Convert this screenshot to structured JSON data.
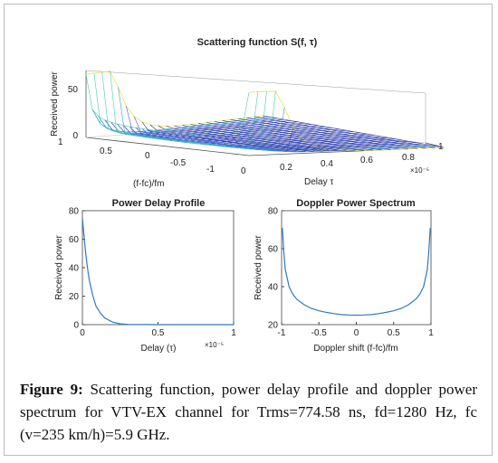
{
  "chart_data": [
    {
      "type": "surface",
      "title": "Scattering function S(f, τ)",
      "zlabel": "Received power",
      "xlabel": "(f-fc)/fm",
      "ylabel": "Delay τ",
      "y_exponent": "×10⁻⁵",
      "z_ticks": [
        "0",
        "50"
      ],
      "x_ticks": [
        "1",
        "0.5",
        "0",
        "-0.5",
        "-1"
      ],
      "y_ticks": [
        "0",
        "0.2",
        "0.4",
        "0.6",
        "0.8",
        "1"
      ],
      "colormap": [
        "#2b2a96",
        "#3f5cc8",
        "#36a2d6",
        "#49c9b0",
        "#e8e64a"
      ]
    },
    {
      "type": "line",
      "title": "Power Delay Profile",
      "xlabel": "Delay (τ)",
      "ylabel": "Received power",
      "x_exponent": "×10⁻⁵",
      "xlim": [
        0,
        1
      ],
      "ylim": [
        0,
        80
      ],
      "x_ticks": [
        "0",
        "0.5",
        "1"
      ],
      "y_ticks": [
        "0",
        "20",
        "40",
        "60",
        "80"
      ],
      "x": [
        0,
        0.01,
        0.02,
        0.03,
        0.04,
        0.05,
        0.07,
        0.09,
        0.12,
        0.15,
        0.2,
        0.25,
        0.3,
        0.4,
        0.5,
        0.6,
        0.7,
        0.8,
        0.9,
        1.0
      ],
      "values": [
        75,
        63,
        52,
        43,
        35,
        29,
        20,
        13,
        8,
        4.5,
        1.8,
        0.6,
        0.2,
        0.05,
        0,
        0,
        0,
        0,
        0,
        0
      ],
      "color": "#2e7bbf"
    },
    {
      "type": "line",
      "title": "Doppler Power Spectrum",
      "xlabel": "Doppler shift (f-fc)/fm",
      "ylabel": "Received power",
      "xlim": [
        -1,
        1
      ],
      "ylim": [
        20,
        80
      ],
      "x_ticks": [
        "-1",
        "-0.5",
        "0",
        "0.5",
        "1"
      ],
      "y_ticks": [
        "20",
        "40",
        "60",
        "80"
      ],
      "x": [
        -0.99,
        -0.97,
        -0.95,
        -0.9,
        -0.85,
        -0.8,
        -0.7,
        -0.6,
        -0.5,
        -0.4,
        -0.3,
        -0.2,
        -0.1,
        0,
        0.1,
        0.2,
        0.3,
        0.4,
        0.5,
        0.6,
        0.7,
        0.8,
        0.85,
        0.9,
        0.95,
        0.97,
        0.99
      ],
      "values": [
        71,
        58,
        49,
        40,
        36,
        33.5,
        30.5,
        28.5,
        27.3,
        26.5,
        25.8,
        25.3,
        25.1,
        25,
        25.1,
        25.3,
        25.8,
        26.5,
        27.3,
        28.5,
        30.5,
        33.5,
        36,
        40,
        49,
        58,
        71
      ],
      "color": "#2e7bbf"
    }
  ],
  "caption": {
    "label": "Figure 9:",
    "text": " Scattering function, power delay profile and doppler power spectrum for VTV-EX channel for Trms=774.58 ns, fd=1280 Hz, fc (v=235 km/h)=5.9 GHz."
  }
}
